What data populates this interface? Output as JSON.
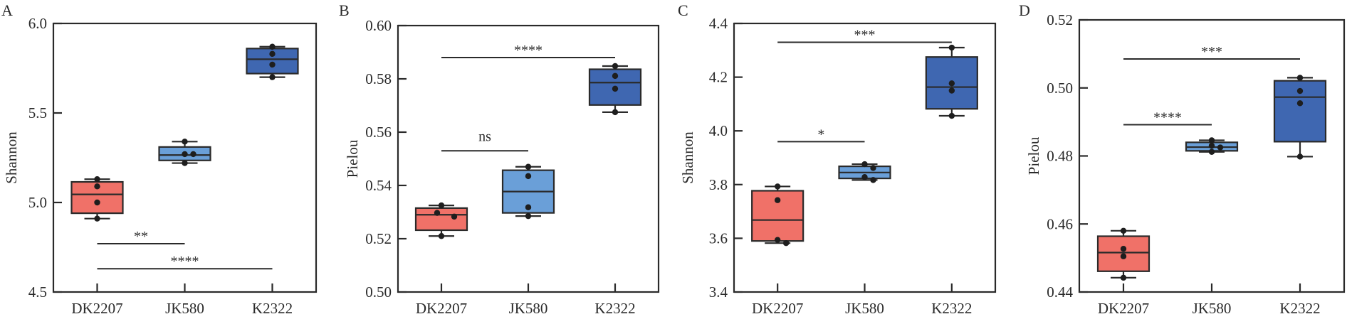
{
  "chart_data": [
    {
      "type": "box",
      "panel_label": "A",
      "title": "",
      "xlabel": "",
      "ylabel": "Shannon",
      "ylim": [
        4.5,
        6.0
      ],
      "yticks": [
        4.5,
        5.0,
        5.5,
        6.0
      ],
      "ytick_labels": [
        "4.5",
        "5.0",
        "5.5",
        "6.0"
      ],
      "grid": false,
      "categories": [
        "DK2207",
        "JK580",
        "K2322"
      ],
      "groups": [
        {
          "name": "DK2207",
          "color": "#F07168",
          "whisker_low": 4.91,
          "q1": 4.94,
          "median": 5.045,
          "q3": 5.115,
          "whisker_high": 5.13,
          "points": [
            5.13,
            5.09,
            5.0,
            4.91
          ]
        },
        {
          "name": "JK580",
          "color": "#6A9FD8",
          "whisker_low": 5.22,
          "q1": 5.235,
          "median": 5.265,
          "q3": 5.31,
          "whisker_high": 5.34,
          "points": [
            5.34,
            5.27,
            5.27,
            5.22
          ]
        },
        {
          "name": "K2322",
          "color": "#3F67B1",
          "whisker_low": 5.7,
          "q1": 5.72,
          "median": 5.8,
          "q3": 5.86,
          "whisker_high": 5.87,
          "points": [
            5.87,
            5.83,
            5.77,
            5.7
          ]
        }
      ],
      "significance": [
        {
          "from": "DK2207",
          "to": "JK580",
          "y": 4.77,
          "label": "**"
        },
        {
          "from": "DK2207",
          "to": "K2322",
          "y": 4.63,
          "label": "****"
        }
      ]
    },
    {
      "type": "box",
      "panel_label": "B",
      "title": "",
      "xlabel": "",
      "ylabel": "Pielou",
      "ylim": [
        0.5,
        0.6
      ],
      "yticks": [
        0.5,
        0.52,
        0.54,
        0.56,
        0.58,
        0.6
      ],
      "ytick_labels": [
        "0.50",
        "0.52",
        "0.54",
        "0.56",
        "0.58",
        "0.60"
      ],
      "grid": false,
      "categories": [
        "DK2207",
        "JK580",
        "K2322"
      ],
      "groups": [
        {
          "name": "DK2207",
          "color": "#F07168",
          "whisker_low": 0.521,
          "q1": 0.5232,
          "median": 0.529,
          "q3": 0.5315,
          "whisker_high": 0.5325,
          "points": [
            0.5325,
            0.5297,
            0.5283,
            0.521
          ]
        },
        {
          "name": "JK580",
          "color": "#6A9FD8",
          "whisker_low": 0.5285,
          "q1": 0.5297,
          "median": 0.5377,
          "q3": 0.5457,
          "whisker_high": 0.547,
          "points": [
            0.547,
            0.5435,
            0.5318,
            0.5285
          ]
        },
        {
          "name": "K2322",
          "color": "#3F67B1",
          "whisker_low": 0.5675,
          "q1": 0.5702,
          "median": 0.5786,
          "q3": 0.5836,
          "whisker_high": 0.5848,
          "points": [
            0.5848,
            0.5811,
            0.5763,
            0.5675
          ]
        }
      ],
      "significance": [
        {
          "from": "DK2207",
          "to": "JK580",
          "y": 0.553,
          "label": "ns"
        },
        {
          "from": "DK2207",
          "to": "K2322",
          "y": 0.588,
          "label": "****"
        }
      ]
    },
    {
      "type": "box",
      "panel_label": "C",
      "title": "",
      "xlabel": "",
      "ylabel": "Shannon",
      "ylim": [
        3.4,
        4.4
      ],
      "yticks": [
        3.4,
        3.6,
        3.8,
        4.0,
        4.2,
        4.4
      ],
      "ytick_labels": [
        "3.4",
        "3.6",
        "3.8",
        "4.0",
        "4.2",
        "4.4"
      ],
      "grid": false,
      "categories": [
        "DK2207",
        "JK580",
        "K2322"
      ],
      "groups": [
        {
          "name": "DK2207",
          "color": "#F07168",
          "whisker_low": 3.582,
          "q1": 3.59,
          "median": 3.668,
          "q3": 3.777,
          "whisker_high": 3.793,
          "points": [
            3.793,
            3.742,
            3.594,
            3.582
          ]
        },
        {
          "name": "JK580",
          "color": "#6A9FD8",
          "whisker_low": 3.817,
          "q1": 3.823,
          "median": 3.845,
          "q3": 3.868,
          "whisker_high": 3.876,
          "points": [
            3.876,
            3.862,
            3.828,
            3.817
          ]
        },
        {
          "name": "K2322",
          "color": "#3F67B1",
          "whisker_low": 4.056,
          "q1": 4.082,
          "median": 4.163,
          "q3": 4.275,
          "whisker_high": 4.31,
          "points": [
            4.31,
            4.177,
            4.15,
            4.056
          ]
        }
      ],
      "significance": [
        {
          "from": "DK2207",
          "to": "JK580",
          "y": 3.96,
          "label": "*"
        },
        {
          "from": "DK2207",
          "to": "K2322",
          "y": 4.33,
          "label": "***"
        }
      ]
    },
    {
      "type": "box",
      "panel_label": "D",
      "title": "",
      "xlabel": "",
      "ylabel": "Pielou",
      "ylim": [
        0.44,
        0.52
      ],
      "yticks": [
        0.44,
        0.46,
        0.48,
        0.5,
        0.52
      ],
      "ytick_labels": [
        "0.44",
        "0.46",
        "0.48",
        "0.50",
        "0.52"
      ],
      "grid": false,
      "categories": [
        "DK2207",
        "JK580",
        "K2322"
      ],
      "groups": [
        {
          "name": "DK2207",
          "color": "#F07168",
          "whisker_low": 0.4442,
          "q1": 0.4461,
          "median": 0.4516,
          "q3": 0.4564,
          "whisker_high": 0.458,
          "points": [
            0.458,
            0.4527,
            0.4505,
            0.4442
          ]
        },
        {
          "name": "JK580",
          "color": "#6A9FD8",
          "whisker_low": 0.4812,
          "q1": 0.4815,
          "median": 0.4826,
          "q3": 0.484,
          "whisker_high": 0.4846,
          "points": [
            0.4846,
            0.483,
            0.4825,
            0.4812
          ]
        },
        {
          "name": "K2322",
          "color": "#3F67B1",
          "whisker_low": 0.4798,
          "q1": 0.4842,
          "median": 0.4973,
          "q3": 0.5021,
          "whisker_high": 0.503,
          "points": [
            0.503,
            0.4991,
            0.4955,
            0.4798
          ]
        }
      ],
      "significance": [
        {
          "from": "DK2207",
          "to": "JK580",
          "y": 0.4892,
          "label": "****"
        },
        {
          "from": "DK2207",
          "to": "K2322",
          "y": 0.5085,
          "label": "***"
        }
      ]
    }
  ]
}
